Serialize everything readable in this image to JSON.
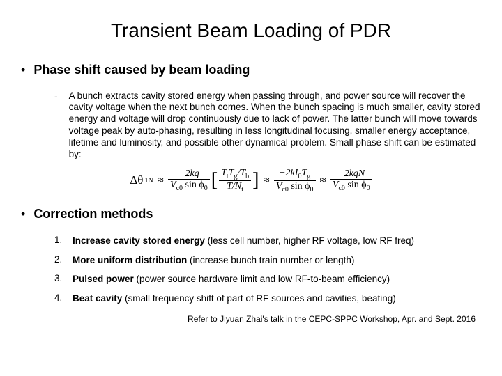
{
  "title": "Transient Beam Loading of PDR",
  "section1": {
    "heading": "Phase shift caused by beam loading",
    "body": "A bunch extracts cavity stored energy when passing through, and power source will recover the cavity voltage when the next bunch comes. When the bunch spacing is much smaller, cavity stored energy and voltage will drop continuously due to lack of power. The latter bunch will move towards voltage peak by auto-phasing, resulting in less longitudinal focusing, smaller energy acceptance, lifetime and luminosity, and possible other dynamical problem. Small phase shift can be estimated by:"
  },
  "equation": {
    "lhs": "Δθ",
    "lhs_sub": "1N",
    "approx": "≈",
    "t1_num_a": "−2kq",
    "t1_den": "V",
    "t1_den_sub": "c0",
    "t1_den_rest": " sin ϕ",
    "t1_den_phi_sub": "0",
    "br_num_a": "T",
    "br_num_a_sub": "t",
    "br_num_b": "T",
    "br_num_b_sub": "g",
    "br_num_c": "/T",
    "br_num_c_sub": "b",
    "br_den_a": "T/N",
    "br_den_a_sub": "t",
    "t2_num": "−2kI",
    "t2_num_sub": "0",
    "t2_num_b": "T",
    "t2_num_b_sub": "g",
    "t3_num": "−2kqN"
  },
  "section2": {
    "heading": "Correction methods",
    "items": [
      {
        "num": "1.",
        "lead": "Increase cavity stored energy",
        "rest": " (less cell number, higher RF voltage, low RF freq)"
      },
      {
        "num": "2.",
        "lead": "More uniform distribution",
        "rest": " (increase bunch train number or length)"
      },
      {
        "num": "3.",
        "lead": "Pulsed power",
        "rest": " (power source hardware limit and low RF-to-beam efficiency)"
      },
      {
        "num": "4.",
        "lead": "Beat cavity",
        "rest": " (small frequency shift of part of RF sources and cavities, beating)"
      }
    ]
  },
  "footnote": "Refer to Jiyuan Zhai's talk in the CEPC-SPPC Workshop, Apr. and Sept. 2016",
  "colors": {
    "text": "#000000",
    "background": "#ffffff"
  },
  "typography": {
    "title_fontsize": 28,
    "heading_fontsize": 18,
    "body_fontsize": 13.5,
    "footnote_fontsize": 12,
    "font_family": "Arial"
  }
}
